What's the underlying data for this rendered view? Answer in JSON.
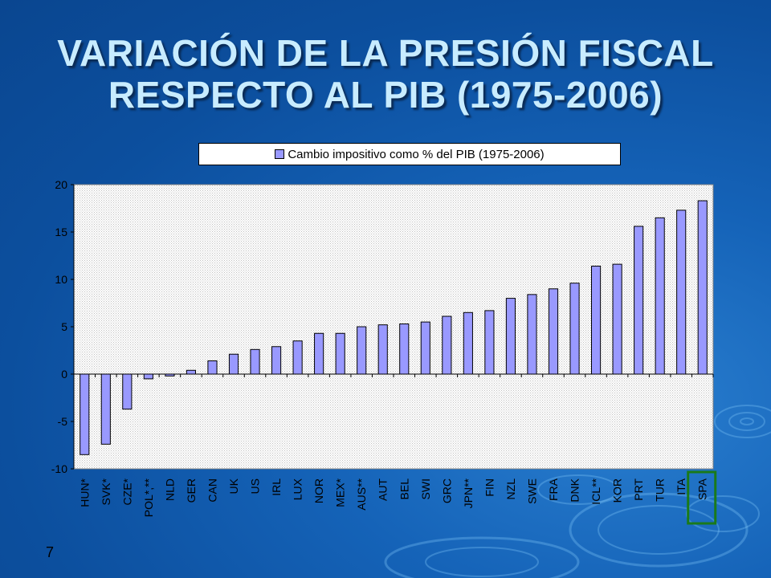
{
  "title": {
    "line1": "VARIACIÓN DE LA PRESIÓN FISCAL",
    "line2": "RESPECTO AL PIB (1975-2006)"
  },
  "slide_number": "7",
  "colors": {
    "bar_fill": "#9999ff",
    "plot_background": "#c0c0c0",
    "highlight_box": "#1a7a1a"
  },
  "chart_data": {
    "type": "bar",
    "legend": "Cambio impositivo como % del PIB (1975-2006)",
    "legend_position": "top",
    "categories": [
      "HUN*",
      "SVK*",
      "CZE*",
      "POL*,**",
      "NLD",
      "GER",
      "CAN",
      "UK",
      "US",
      "IRL",
      "LUX",
      "NOR",
      "MEX*",
      "AUS**",
      "AUT",
      "BEL",
      "SWI",
      "GRC",
      "JPN**",
      "FIN",
      "NZL",
      "SWE",
      "FRA",
      "DNK",
      "ICL**",
      "KOR",
      "PRT",
      "TUR",
      "ITA",
      "SPA"
    ],
    "series": [
      {
        "name": "Cambio impositivo como % del PIB (1975-2006)",
        "values": [
          -8.5,
          -7.4,
          -3.7,
          -0.5,
          -0.2,
          0.4,
          1.4,
          2.1,
          2.6,
          2.9,
          3.5,
          4.3,
          4.3,
          5.0,
          5.2,
          5.3,
          5.5,
          6.1,
          6.5,
          6.7,
          8.0,
          8.4,
          9.0,
          9.6,
          11.4,
          11.6,
          15.6,
          16.5,
          17.3,
          18.3
        ]
      }
    ],
    "ylim": [
      -10,
      20
    ],
    "yticks": [
      -10,
      -5,
      0,
      5,
      10,
      15,
      20
    ],
    "highlighted_category": "SPA",
    "xlabel": "",
    "ylabel": ""
  }
}
